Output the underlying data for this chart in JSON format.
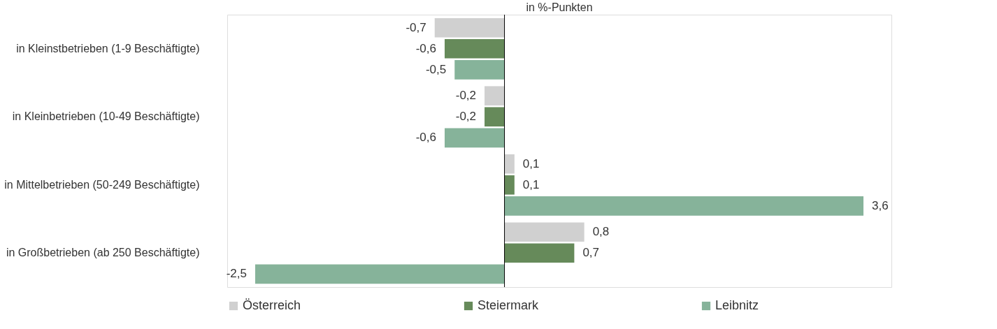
{
  "chart_data": {
    "type": "bar",
    "orientation": "horizontal",
    "title": "in %-Punkten",
    "categories": [
      "in Kleinstbetrieben (1-9 Beschäftigte)",
      "in Kleinbetrieben (10-49 Beschäftigte)",
      "in Mittelbetrieben (50-249 Beschäftigte)",
      "in Großbetrieben (ab 250 Beschäftigte)"
    ],
    "series": [
      {
        "name": "Österreich",
        "color": "#d0d0d0",
        "values": [
          -0.7,
          -0.2,
          0.1,
          0.8
        ],
        "value_labels": [
          "-0,7",
          "-0,2",
          "0,1",
          "0,8"
        ]
      },
      {
        "name": "Steiermark",
        "color": "#668a5a",
        "values": [
          -0.6,
          -0.2,
          0.1,
          0.7
        ],
        "value_labels": [
          "-0,6",
          "-0,2",
          "0,1",
          "0,7"
        ]
      },
      {
        "name": "Leibnitz",
        "color": "#86b39a",
        "values": [
          -0.5,
          -0.6,
          3.6,
          -2.5
        ],
        "value_labels": [
          "-0,5",
          "-0,6",
          "3,6",
          "-2,5"
        ]
      }
    ],
    "grid": false,
    "legend": "bottom"
  }
}
